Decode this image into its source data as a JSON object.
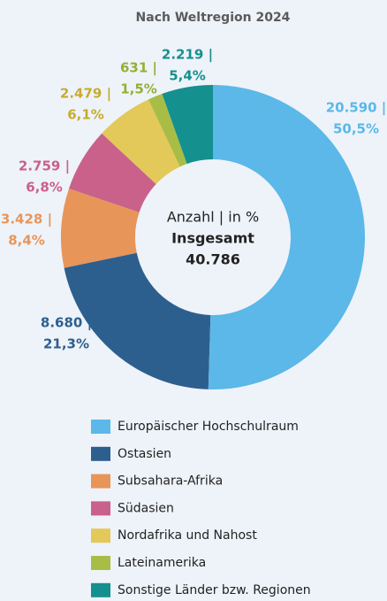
{
  "chart_data": {
    "type": "donut",
    "title": "Nach Weltregion 2024",
    "center_label": [
      "Anzahl | in %",
      "Insgesamt"
    ],
    "total": {
      "value": 40786,
      "label": "40.786"
    },
    "categories": [
      "Europäischer Hochschulraum",
      "Ostasien",
      "Subsahara-Afrika",
      "Südasien",
      "Nordafrika und Nahost",
      "Lateinamerika",
      "Sonstige Länder bzw. Regionen"
    ],
    "values": [
      20590,
      8680,
      3428,
      2759,
      2479,
      631,
      2219
    ],
    "value_labels": [
      "20.590 |",
      "8.680 |",
      "3.428 |",
      "2.759 |",
      "2.479 |",
      "631 |",
      "2.219 |"
    ],
    "percents": [
      50.5,
      21.3,
      8.4,
      6.8,
      6.1,
      1.5,
      5.4
    ],
    "percent_labels": [
      "50,5%",
      "21,3%",
      "8,4%",
      "6,8%",
      "6,1%",
      "1,5%",
      "5,4%"
    ],
    "colors": [
      "#5bb8e8",
      "#2d5f8e",
      "#e8955a",
      "#c9618a",
      "#e3c85a",
      "#a8bd45",
      "#14908f"
    ]
  }
}
